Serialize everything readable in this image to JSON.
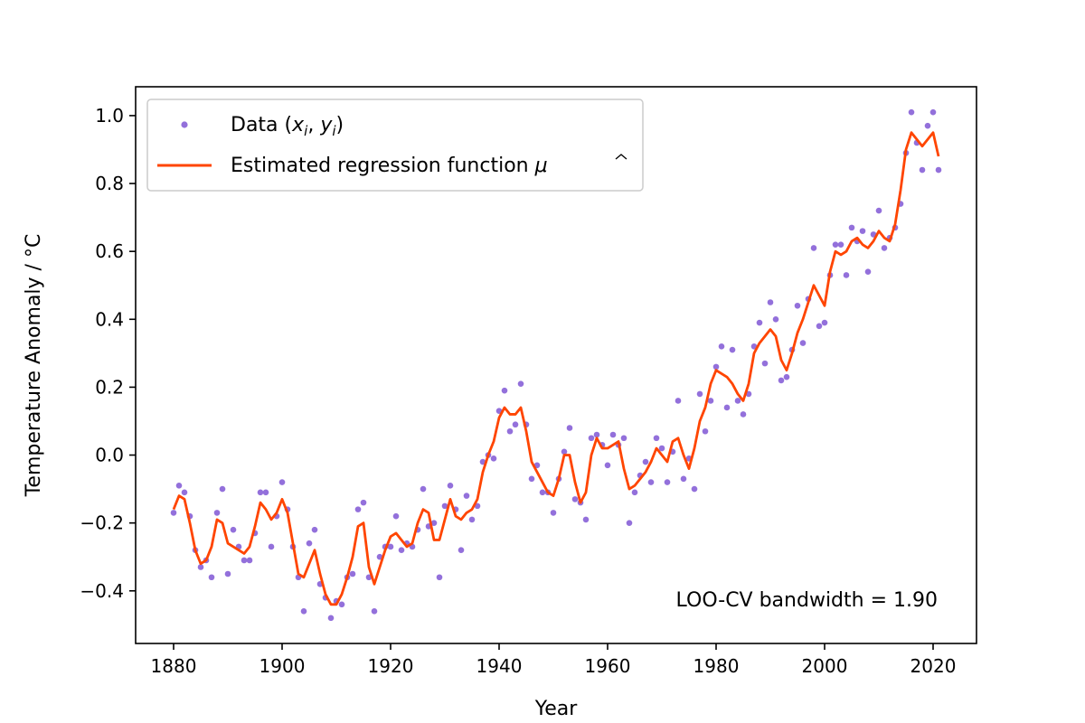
{
  "chart_data": {
    "type": "scatter",
    "xlabel": "Year",
    "ylabel": "Temperature Anomaly / °C",
    "xlim": [
      1873,
      2028
    ],
    "ylim": [
      -0.555,
      1.085
    ],
    "xticks": [
      1880,
      1900,
      1920,
      1940,
      1960,
      1980,
      2000,
      2020
    ],
    "yticks": [
      -0.4,
      -0.2,
      0.0,
      0.2,
      0.4,
      0.6,
      0.8,
      1.0
    ],
    "ytick_labels": [
      "−0.4",
      "−0.2",
      "0.0",
      "0.2",
      "0.4",
      "0.6",
      "0.8",
      "1.0"
    ],
    "grid": false,
    "legend_position": "top-left",
    "annotation": "LOO-CV bandwidth = 1.90",
    "colors": {
      "scatter": "#9370DB",
      "line": "#FF4500"
    },
    "series": [
      {
        "name": "Data (x_i, y_i)",
        "kind": "scatter",
        "x": [
          1880,
          1881,
          1882,
          1883,
          1884,
          1885,
          1886,
          1887,
          1888,
          1889,
          1890,
          1891,
          1892,
          1893,
          1894,
          1895,
          1896,
          1897,
          1898,
          1899,
          1900,
          1901,
          1902,
          1903,
          1904,
          1905,
          1906,
          1907,
          1908,
          1909,
          1910,
          1911,
          1912,
          1913,
          1914,
          1915,
          1916,
          1917,
          1918,
          1919,
          1920,
          1921,
          1922,
          1923,
          1924,
          1925,
          1926,
          1927,
          1928,
          1929,
          1930,
          1931,
          1932,
          1933,
          1934,
          1935,
          1936,
          1937,
          1938,
          1939,
          1940,
          1941,
          1942,
          1943,
          1944,
          1945,
          1946,
          1947,
          1948,
          1949,
          1950,
          1951,
          1952,
          1953,
          1954,
          1955,
          1956,
          1957,
          1958,
          1959,
          1960,
          1961,
          1962,
          1963,
          1964,
          1965,
          1966,
          1967,
          1968,
          1969,
          1970,
          1971,
          1972,
          1973,
          1974,
          1975,
          1976,
          1977,
          1978,
          1979,
          1980,
          1981,
          1982,
          1983,
          1984,
          1985,
          1986,
          1987,
          1988,
          1989,
          1990,
          1991,
          1992,
          1993,
          1994,
          1995,
          1996,
          1997,
          1998,
          1999,
          2000,
          2001,
          2002,
          2003,
          2004,
          2005,
          2006,
          2007,
          2008,
          2009,
          2010,
          2011,
          2012,
          2013,
          2014,
          2015,
          2016,
          2017,
          2018,
          2019,
          2020,
          2021
        ],
        "y": [
          -0.17,
          -0.09,
          -0.11,
          -0.18,
          -0.28,
          -0.33,
          -0.31,
          -0.36,
          -0.17,
          -0.1,
          -0.35,
          -0.22,
          -0.27,
          -0.31,
          -0.31,
          -0.23,
          -0.11,
          -0.11,
          -0.27,
          -0.18,
          -0.08,
          -0.16,
          -0.27,
          -0.36,
          -0.46,
          -0.26,
          -0.22,
          -0.38,
          -0.42,
          -0.48,
          -0.43,
          -0.44,
          -0.36,
          -0.35,
          -0.16,
          -0.14,
          -0.36,
          -0.46,
          -0.3,
          -0.27,
          -0.27,
          -0.18,
          -0.28,
          -0.26,
          -0.27,
          -0.22,
          -0.1,
          -0.21,
          -0.2,
          -0.36,
          -0.15,
          -0.09,
          -0.16,
          -0.28,
          -0.12,
          -0.19,
          -0.15,
          -0.02,
          0.0,
          -0.01,
          0.13,
          0.19,
          0.07,
          0.09,
          0.21,
          0.09,
          -0.07,
          -0.03,
          -0.11,
          -0.11,
          -0.17,
          -0.07,
          0.01,
          0.08,
          -0.13,
          -0.14,
          -0.19,
          0.05,
          0.06,
          0.03,
          -0.03,
          0.06,
          0.03,
          0.05,
          -0.2,
          -0.11,
          -0.06,
          -0.02,
          -0.08,
          0.05,
          0.02,
          -0.08,
          0.01,
          0.16,
          -0.07,
          -0.01,
          -0.1,
          0.18,
          0.07,
          0.16,
          0.26,
          0.32,
          0.14,
          0.31,
          0.16,
          0.12,
          0.18,
          0.32,
          0.39,
          0.27,
          0.45,
          0.4,
          0.22,
          0.23,
          0.31,
          0.44,
          0.33,
          0.46,
          0.61,
          0.38,
          0.39,
          0.53,
          0.62,
          0.62,
          0.53,
          0.67,
          0.63,
          0.66,
          0.54,
          0.65,
          0.72,
          0.61,
          0.64,
          0.67,
          0.74,
          0.89,
          1.01,
          0.92,
          0.84,
          0.97,
          1.01,
          0.84
        ]
      },
      {
        "name": "Estimated regression function μ̂",
        "kind": "line",
        "x": [
          1880,
          1881,
          1882,
          1883,
          1884,
          1885,
          1886,
          1887,
          1888,
          1889,
          1890,
          1891,
          1892,
          1893,
          1894,
          1895,
          1896,
          1897,
          1898,
          1899,
          1900,
          1901,
          1902,
          1903,
          1904,
          1905,
          1906,
          1907,
          1908,
          1909,
          1910,
          1911,
          1912,
          1913,
          1914,
          1915,
          1916,
          1917,
          1918,
          1919,
          1920,
          1921,
          1922,
          1923,
          1924,
          1925,
          1926,
          1927,
          1928,
          1929,
          1930,
          1931,
          1932,
          1933,
          1934,
          1935,
          1936,
          1937,
          1938,
          1939,
          1940,
          1941,
          1942,
          1943,
          1944,
          1945,
          1946,
          1947,
          1948,
          1949,
          1950,
          1951,
          1952,
          1953,
          1954,
          1955,
          1956,
          1957,
          1958,
          1959,
          1960,
          1961,
          1962,
          1963,
          1964,
          1965,
          1966,
          1967,
          1968,
          1969,
          1970,
          1971,
          1972,
          1973,
          1974,
          1975,
          1976,
          1977,
          1978,
          1979,
          1980,
          1981,
          1982,
          1983,
          1984,
          1985,
          1986,
          1987,
          1988,
          1989,
          1990,
          1991,
          1992,
          1993,
          1994,
          1995,
          1996,
          1997,
          1998,
          1999,
          2000,
          2001,
          2002,
          2003,
          2004,
          2005,
          2006,
          2007,
          2008,
          2009,
          2010,
          2011,
          2012,
          2013,
          2014,
          2015,
          2016,
          2017,
          2018,
          2019,
          2020,
          2021
        ],
        "y": [
          -0.16,
          -0.12,
          -0.13,
          -0.2,
          -0.28,
          -0.32,
          -0.31,
          -0.27,
          -0.19,
          -0.2,
          -0.26,
          -0.27,
          -0.28,
          -0.29,
          -0.27,
          -0.21,
          -0.14,
          -0.16,
          -0.19,
          -0.17,
          -0.13,
          -0.17,
          -0.26,
          -0.35,
          -0.36,
          -0.32,
          -0.28,
          -0.35,
          -0.41,
          -0.44,
          -0.44,
          -0.41,
          -0.36,
          -0.3,
          -0.21,
          -0.2,
          -0.33,
          -0.38,
          -0.33,
          -0.28,
          -0.24,
          -0.23,
          -0.25,
          -0.27,
          -0.26,
          -0.2,
          -0.16,
          -0.17,
          -0.25,
          -0.25,
          -0.19,
          -0.13,
          -0.18,
          -0.19,
          -0.17,
          -0.16,
          -0.13,
          -0.05,
          0.0,
          0.04,
          0.11,
          0.14,
          0.12,
          0.12,
          0.14,
          0.07,
          -0.02,
          -0.05,
          -0.08,
          -0.11,
          -0.12,
          -0.07,
          0.0,
          0.0,
          -0.08,
          -0.14,
          -0.11,
          0.0,
          0.05,
          0.02,
          0.02,
          0.03,
          0.04,
          -0.04,
          -0.1,
          -0.09,
          -0.07,
          -0.05,
          -0.02,
          0.02,
          0.0,
          -0.02,
          0.04,
          0.05,
          0.0,
          -0.04,
          0.02,
          0.1,
          0.14,
          0.21,
          0.25,
          0.24,
          0.23,
          0.21,
          0.18,
          0.16,
          0.21,
          0.3,
          0.33,
          0.35,
          0.37,
          0.35,
          0.28,
          0.25,
          0.3,
          0.36,
          0.4,
          0.45,
          0.5,
          0.47,
          0.44,
          0.54,
          0.6,
          0.59,
          0.6,
          0.63,
          0.64,
          0.62,
          0.61,
          0.63,
          0.66,
          0.64,
          0.63,
          0.68,
          0.78,
          0.9,
          0.95,
          0.93,
          0.91,
          0.93,
          0.95,
          0.88
        ]
      }
    ]
  },
  "legend": {
    "scatter_label_prefix": "Data (",
    "scatter_label_x": "x",
    "scatter_label_sub1": "i",
    "scatter_label_sep": ", ",
    "scatter_label_y": "y",
    "scatter_label_sub2": "i",
    "scatter_label_suffix": ")",
    "line_label": "Estimated regression function ",
    "line_label_mu": "μ"
  }
}
